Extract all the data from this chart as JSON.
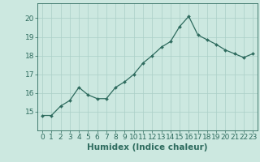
{
  "x": [
    0,
    1,
    2,
    3,
    4,
    5,
    6,
    7,
    8,
    9,
    10,
    11,
    12,
    13,
    14,
    15,
    16,
    17,
    18,
    19,
    20,
    21,
    22,
    23
  ],
  "y": [
    14.8,
    14.8,
    15.3,
    15.6,
    16.3,
    15.9,
    15.7,
    15.7,
    16.3,
    16.6,
    17.0,
    17.6,
    18.0,
    18.45,
    18.75,
    19.55,
    20.1,
    19.1,
    18.85,
    18.6,
    18.3,
    18.1,
    17.9,
    18.1
  ],
  "line_color": "#2e6b5e",
  "marker": "D",
  "marker_size": 2,
  "bg_color": "#cce8e0",
  "grid_color": "#aacfc7",
  "xlabel": "Humidex (Indice chaleur)",
  "ylim": [
    14.0,
    20.8
  ],
  "xlim": [
    -0.5,
    23.5
  ],
  "yticks": [
    15,
    16,
    17,
    18,
    19,
    20
  ],
  "xticks": [
    0,
    1,
    2,
    3,
    4,
    5,
    6,
    7,
    8,
    9,
    10,
    11,
    12,
    13,
    14,
    15,
    16,
    17,
    18,
    19,
    20,
    21,
    22,
    23
  ],
  "tick_color": "#2e6b5e",
  "label_color": "#2e6b5e",
  "tick_fontsize": 6.5,
  "xlabel_fontsize": 7.5
}
